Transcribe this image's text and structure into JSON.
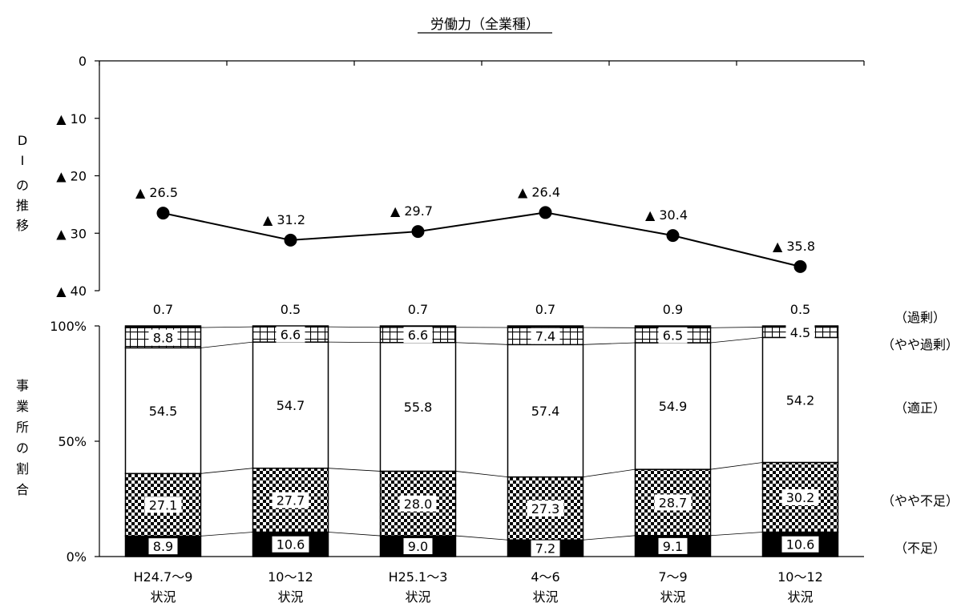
{
  "title": "労働力（全業種）",
  "di_axis_label": [
    "D",
    "I",
    "の",
    "推",
    "移"
  ],
  "share_axis_label": [
    "事",
    "業",
    "所",
    "の",
    "割",
    "合"
  ],
  "categories": [
    [
      "H24.7～9",
      "状況"
    ],
    [
      "10～12",
      "状況"
    ],
    [
      "H25.1～3",
      "状況"
    ],
    [
      "4～6",
      "状況"
    ],
    [
      "7～9",
      "状況"
    ],
    [
      "10～12",
      "状況"
    ]
  ],
  "di_ticks": [
    "0",
    "▲ 10",
    "▲ 20",
    "▲ 30",
    "▲ 40"
  ],
  "share_ticks": [
    "0%",
    "50%",
    "100%"
  ],
  "chart_data": [
    {
      "type": "line",
      "title": "労働力（全業種）",
      "ylabel": "DIの推移",
      "ylim": [
        -40,
        0
      ],
      "grid": false,
      "categories": [
        "H24.7～9 状況",
        "10～12 状況",
        "H25.1～3 状況",
        "4～6 状況",
        "7～9 状況",
        "10～12 状況"
      ],
      "values": [
        -26.5,
        -31.2,
        -29.7,
        -26.4,
        -30.4,
        -35.8
      ],
      "labels": [
        "▲ 26.5",
        "▲ 31.2",
        "▲ 29.7",
        "▲ 26.4",
        "▲ 30.4",
        "▲ 35.8"
      ]
    },
    {
      "type": "bar",
      "stacked": true,
      "ylabel": "事業所の割合",
      "ylim": [
        0,
        100
      ],
      "grid": false,
      "categories": [
        "H24.7～9 状況",
        "10～12 状況",
        "H25.1～3 状況",
        "4～6 状況",
        "7～9 状況",
        "10～12 状況"
      ],
      "series": [
        {
          "name": "（不足）",
          "values": [
            8.9,
            10.6,
            9.0,
            7.2,
            9.1,
            10.6
          ],
          "labels": [
            "8.9",
            "10.6",
            "9.0",
            "7.2",
            "9.1",
            "10.6"
          ],
          "pattern": "solid-black"
        },
        {
          "name": "（やや不足）",
          "values": [
            27.1,
            27.7,
            28.0,
            27.3,
            28.7,
            30.2
          ],
          "labels": [
            "27.1",
            "27.7",
            "28.0",
            "27.3",
            "28.7",
            "30.2"
          ],
          "pattern": "checkerboard"
        },
        {
          "name": "（適正）",
          "values": [
            54.5,
            54.7,
            55.8,
            57.4,
            54.9,
            54.2
          ],
          "labels": [
            "54.5",
            "54.7",
            "55.8",
            "57.4",
            "54.9",
            "54.2"
          ],
          "pattern": "white"
        },
        {
          "name": "（やや過剰）",
          "values": [
            8.8,
            6.6,
            6.6,
            7.4,
            6.5,
            4.5
          ],
          "labels": [
            "8.8",
            "6.6",
            "6.6",
            "7.4",
            "6.5",
            "4.5"
          ],
          "pattern": "grid"
        },
        {
          "name": "（過剰）",
          "values": [
            0.7,
            0.5,
            0.7,
            0.7,
            0.9,
            0.5
          ],
          "labels": [
            "0.7",
            "0.5",
            "0.7",
            "0.7",
            "0.9",
            "0.5"
          ],
          "pattern": "solid-black"
        }
      ]
    }
  ]
}
